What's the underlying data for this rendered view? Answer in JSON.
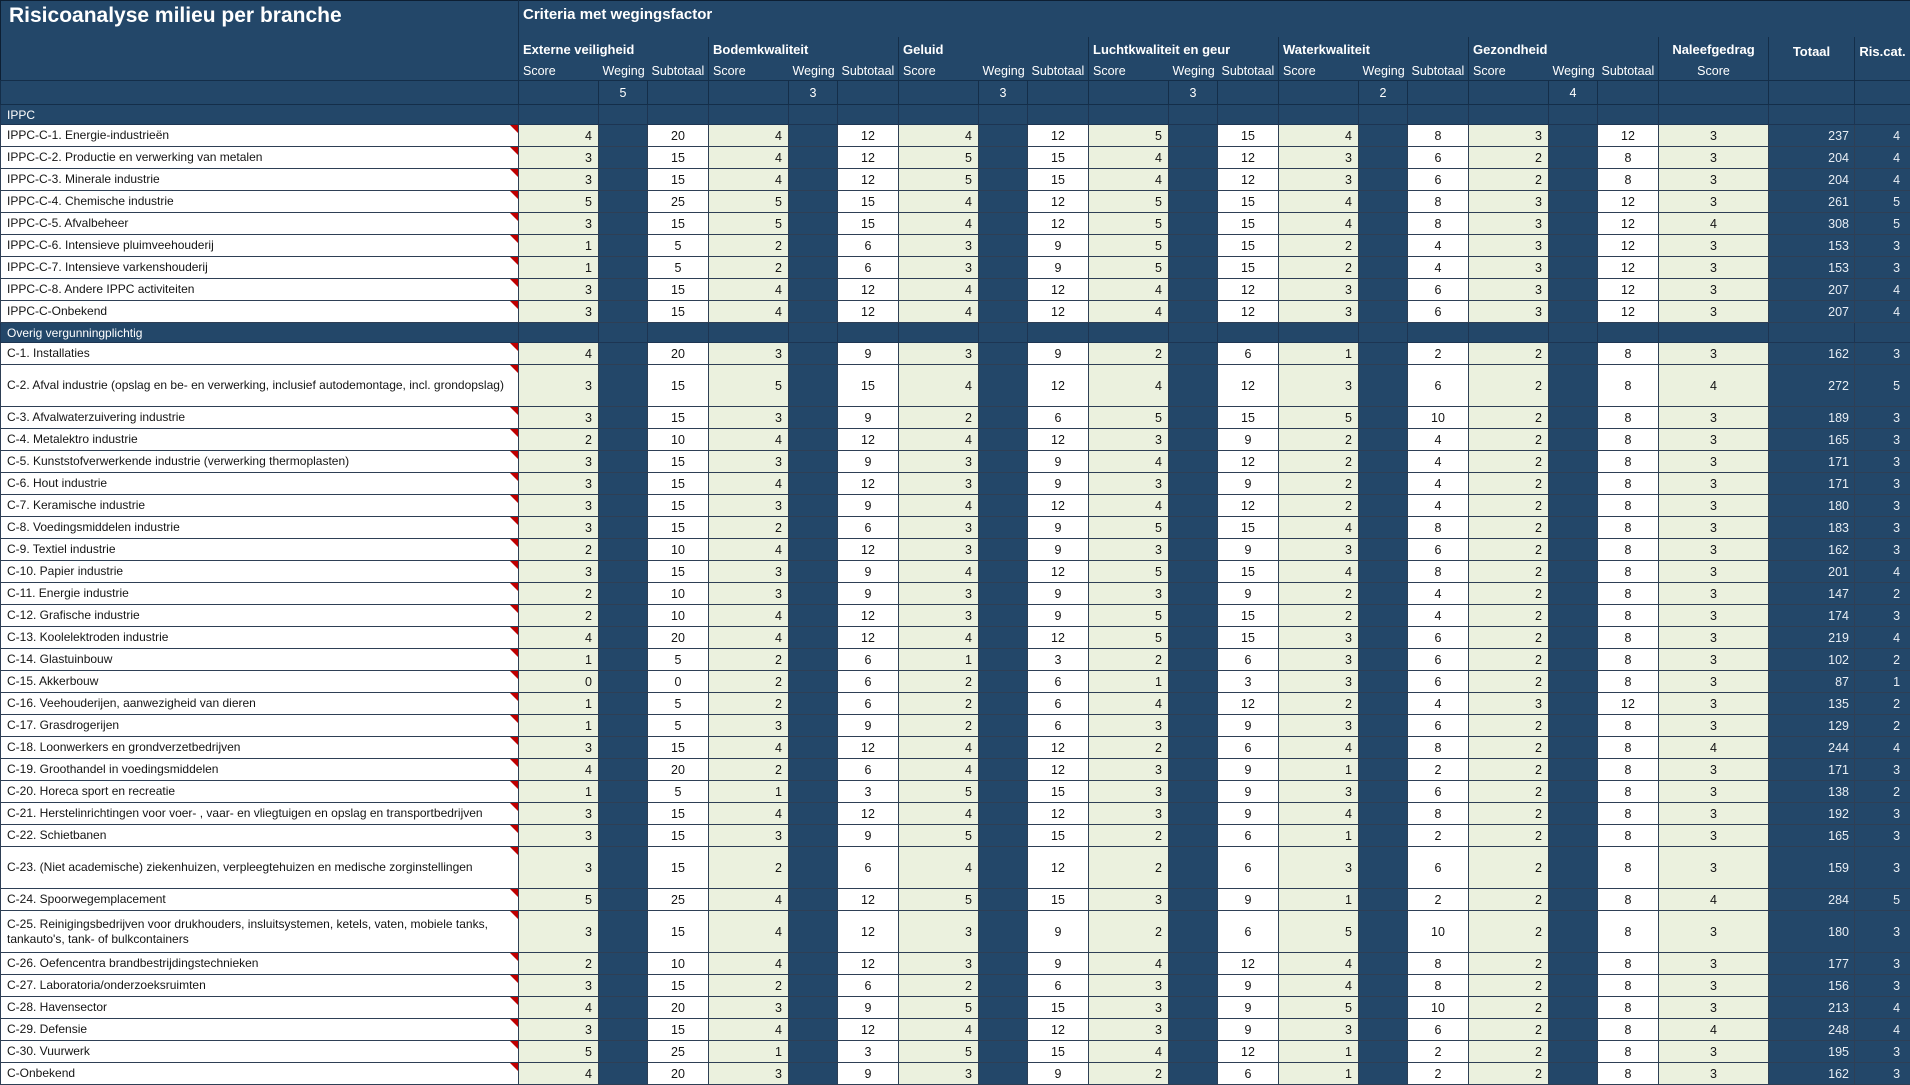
{
  "title": "Risicoanalyse milieu per branche",
  "criteria_header": "Criteria met wegingsfactor",
  "columns": {
    "score": "Score",
    "weging": "Weging",
    "subtotaal": "Subtotaal"
  },
  "criteria": [
    {
      "name": "Externe veiligheid",
      "weight": 5
    },
    {
      "name": "Bodemkwaliteit",
      "weight": 3
    },
    {
      "name": "Geluid",
      "weight": 3
    },
    {
      "name": "Luchtkwaliteit en geur",
      "weight": 3
    },
    {
      "name": "Waterkwaliteit",
      "weight": 2
    },
    {
      "name": "Gezondheid",
      "weight": 4
    }
  ],
  "extra_columns": {
    "naleefgedrag": "Naleefgedrag",
    "naleef_sub": "Score",
    "totaal": "Totaal",
    "riscat": "Ris.cat."
  },
  "colors": {
    "navy": "#234769",
    "cell_green": "#EBF1DE",
    "cell_white": "#FFFFFF",
    "comment_red": "#C00000"
  },
  "sections": [
    {
      "label": "IPPC",
      "rows": [
        {
          "name": "IPPC-C-1. Energie-industrieën",
          "values": [
            4,
            20,
            4,
            12,
            4,
            12,
            5,
            15,
            4,
            8,
            3,
            12
          ],
          "naleef": 3,
          "totaal": 237,
          "riscat": 4
        },
        {
          "name": "IPPC-C-2. Productie en verwerking van metalen",
          "values": [
            3,
            15,
            4,
            12,
            5,
            15,
            4,
            12,
            3,
            6,
            2,
            8
          ],
          "naleef": 3,
          "totaal": 204,
          "riscat": 4
        },
        {
          "name": "IPPC-C-3. Minerale industrie",
          "values": [
            3,
            15,
            4,
            12,
            5,
            15,
            4,
            12,
            3,
            6,
            2,
            8
          ],
          "naleef": 3,
          "totaal": 204,
          "riscat": 4
        },
        {
          "name": "IPPC-C-4. Chemische industrie",
          "values": [
            5,
            25,
            5,
            15,
            4,
            12,
            5,
            15,
            4,
            8,
            3,
            12
          ],
          "naleef": 3,
          "totaal": 261,
          "riscat": 5
        },
        {
          "name": "IPPC-C-5. Afvalbeheer",
          "values": [
            3,
            15,
            5,
            15,
            4,
            12,
            5,
            15,
            4,
            8,
            3,
            12
          ],
          "naleef": 4,
          "totaal": 308,
          "riscat": 5
        },
        {
          "name": "IPPC-C-6. Intensieve pluimveehouderij",
          "values": [
            1,
            5,
            2,
            6,
            3,
            9,
            5,
            15,
            2,
            4,
            3,
            12
          ],
          "naleef": 3,
          "totaal": 153,
          "riscat": 3
        },
        {
          "name": "IPPC-C-7. Intensieve varkenshouderij",
          "values": [
            1,
            5,
            2,
            6,
            3,
            9,
            5,
            15,
            2,
            4,
            3,
            12
          ],
          "naleef": 3,
          "totaal": 153,
          "riscat": 3
        },
        {
          "name": "IPPC-C-8. Andere IPPC activiteiten",
          "values": [
            3,
            15,
            4,
            12,
            4,
            12,
            4,
            12,
            3,
            6,
            3,
            12
          ],
          "naleef": 3,
          "totaal": 207,
          "riscat": 4
        },
        {
          "name": "IPPC-C-Onbekend",
          "values": [
            3,
            15,
            4,
            12,
            4,
            12,
            4,
            12,
            3,
            6,
            3,
            12
          ],
          "naleef": 3,
          "totaal": 207,
          "riscat": 4
        }
      ]
    },
    {
      "label": "Overig vergunningplichtig",
      "rows": [
        {
          "name": "C-1. Installaties",
          "values": [
            4,
            20,
            3,
            9,
            3,
            9,
            2,
            6,
            1,
            2,
            2,
            8
          ],
          "naleef": 3,
          "totaal": 162,
          "riscat": 3
        },
        {
          "name": "C-2. Afval industrie (opslag en be- en verwerking, inclusief autodemontage, incl. grondopslag)",
          "values": [
            3,
            15,
            5,
            15,
            4,
            12,
            4,
            12,
            3,
            6,
            2,
            8
          ],
          "naleef": 4,
          "totaal": 272,
          "riscat": 5,
          "tall": true
        },
        {
          "name": "C-3. Afvalwaterzuivering industrie",
          "values": [
            3,
            15,
            3,
            9,
            2,
            6,
            5,
            15,
            5,
            10,
            2,
            8
          ],
          "naleef": 3,
          "totaal": 189,
          "riscat": 3
        },
        {
          "name": "C-4. Metalektro industrie",
          "values": [
            2,
            10,
            4,
            12,
            4,
            12,
            3,
            9,
            2,
            4,
            2,
            8
          ],
          "naleef": 3,
          "totaal": 165,
          "riscat": 3
        },
        {
          "name": "C-5. Kunststofverwerkende industrie (verwerking thermoplasten)",
          "values": [
            3,
            15,
            3,
            9,
            3,
            9,
            4,
            12,
            2,
            4,
            2,
            8
          ],
          "naleef": 3,
          "totaal": 171,
          "riscat": 3
        },
        {
          "name": "C-6. Hout industrie",
          "values": [
            3,
            15,
            4,
            12,
            3,
            9,
            3,
            9,
            2,
            4,
            2,
            8
          ],
          "naleef": 3,
          "totaal": 171,
          "riscat": 3
        },
        {
          "name": "C-7. Keramische industrie",
          "values": [
            3,
            15,
            3,
            9,
            4,
            12,
            4,
            12,
            2,
            4,
            2,
            8
          ],
          "naleef": 3,
          "totaal": 180,
          "riscat": 3
        },
        {
          "name": "C-8. Voedingsmiddelen industrie",
          "values": [
            3,
            15,
            2,
            6,
            3,
            9,
            5,
            15,
            4,
            8,
            2,
            8
          ],
          "naleef": 3,
          "totaal": 183,
          "riscat": 3
        },
        {
          "name": "C-9. Textiel industrie",
          "values": [
            2,
            10,
            4,
            12,
            3,
            9,
            3,
            9,
            3,
            6,
            2,
            8
          ],
          "naleef": 3,
          "totaal": 162,
          "riscat": 3
        },
        {
          "name": "C-10. Papier industrie",
          "values": [
            3,
            15,
            3,
            9,
            4,
            12,
            5,
            15,
            4,
            8,
            2,
            8
          ],
          "naleef": 3,
          "totaal": 201,
          "riscat": 4
        },
        {
          "name": "C-11. Energie industrie",
          "values": [
            2,
            10,
            3,
            9,
            3,
            9,
            3,
            9,
            2,
            4,
            2,
            8
          ],
          "naleef": 3,
          "totaal": 147,
          "riscat": 2
        },
        {
          "name": "C-12. Grafische industrie",
          "values": [
            2,
            10,
            4,
            12,
            3,
            9,
            5,
            15,
            2,
            4,
            2,
            8
          ],
          "naleef": 3,
          "totaal": 174,
          "riscat": 3
        },
        {
          "name": "C-13. Koolelektroden industrie",
          "values": [
            4,
            20,
            4,
            12,
            4,
            12,
            5,
            15,
            3,
            6,
            2,
            8
          ],
          "naleef": 3,
          "totaal": 219,
          "riscat": 4
        },
        {
          "name": "C-14. Glastuinbouw",
          "values": [
            1,
            5,
            2,
            6,
            1,
            3,
            2,
            6,
            3,
            6,
            2,
            8
          ],
          "naleef": 3,
          "totaal": 102,
          "riscat": 2
        },
        {
          "name": "C-15. Akkerbouw",
          "values": [
            0,
            0,
            2,
            6,
            2,
            6,
            1,
            3,
            3,
            6,
            2,
            8
          ],
          "naleef": 3,
          "totaal": 87,
          "riscat": 1
        },
        {
          "name": "C-16. Veehouderijen, aanwezigheid van dieren",
          "values": [
            1,
            5,
            2,
            6,
            2,
            6,
            4,
            12,
            2,
            4,
            3,
            12
          ],
          "naleef": 3,
          "totaal": 135,
          "riscat": 2
        },
        {
          "name": "C-17. Grasdrogerijen",
          "values": [
            1,
            5,
            3,
            9,
            2,
            6,
            3,
            9,
            3,
            6,
            2,
            8
          ],
          "naleef": 3,
          "totaal": 129,
          "riscat": 2
        },
        {
          "name": "C-18. Loonwerkers en grondverzetbedrijven",
          "values": [
            3,
            15,
            4,
            12,
            4,
            12,
            2,
            6,
            4,
            8,
            2,
            8
          ],
          "naleef": 4,
          "totaal": 244,
          "riscat": 4
        },
        {
          "name": "C-19. Groothandel in voedingsmiddelen",
          "values": [
            4,
            20,
            2,
            6,
            4,
            12,
            3,
            9,
            1,
            2,
            2,
            8
          ],
          "naleef": 3,
          "totaal": 171,
          "riscat": 3
        },
        {
          "name": "C-20. Horeca sport en recreatie",
          "values": [
            1,
            5,
            1,
            3,
            5,
            15,
            3,
            9,
            3,
            6,
            2,
            8
          ],
          "naleef": 3,
          "totaal": 138,
          "riscat": 2
        },
        {
          "name": "C-21. Herstelinrichtingen voor voer- , vaar- en vliegtuigen en opslag en transportbedrijven",
          "values": [
            3,
            15,
            4,
            12,
            4,
            12,
            3,
            9,
            4,
            8,
            2,
            8
          ],
          "naleef": 3,
          "totaal": 192,
          "riscat": 3
        },
        {
          "name": "C-22. Schietbanen",
          "values": [
            3,
            15,
            3,
            9,
            5,
            15,
            2,
            6,
            1,
            2,
            2,
            8
          ],
          "naleef": 3,
          "totaal": 165,
          "riscat": 3
        },
        {
          "name": "C-23. (Niet academische) ziekenhuizen, verpleegtehuizen en medische zorginstellingen",
          "values": [
            3,
            15,
            2,
            6,
            4,
            12,
            2,
            6,
            3,
            6,
            2,
            8
          ],
          "naleef": 3,
          "totaal": 159,
          "riscat": 3,
          "tall": true
        },
        {
          "name": "C-24. Spoorwegemplacement",
          "values": [
            5,
            25,
            4,
            12,
            5,
            15,
            3,
            9,
            1,
            2,
            2,
            8
          ],
          "naleef": 4,
          "totaal": 284,
          "riscat": 5
        },
        {
          "name": "C-25. Reinigingsbedrijven voor drukhouders, insluitsystemen, ketels, vaten, mobiele tanks, tankauto's, tank- of bulkcontainers",
          "values": [
            3,
            15,
            4,
            12,
            3,
            9,
            2,
            6,
            5,
            10,
            2,
            8
          ],
          "naleef": 3,
          "totaal": 180,
          "riscat": 3,
          "tall": true
        },
        {
          "name": "C-26. Oefencentra brandbestrijdingstechnieken",
          "values": [
            2,
            10,
            4,
            12,
            3,
            9,
            4,
            12,
            4,
            8,
            2,
            8
          ],
          "naleef": 3,
          "totaal": 177,
          "riscat": 3
        },
        {
          "name": "C-27. Laboratoria/onderzoeksruimten",
          "values": [
            3,
            15,
            2,
            6,
            2,
            6,
            3,
            9,
            4,
            8,
            2,
            8
          ],
          "naleef": 3,
          "totaal": 156,
          "riscat": 3
        },
        {
          "name": "C-28. Havensector",
          "values": [
            4,
            20,
            3,
            9,
            5,
            15,
            3,
            9,
            5,
            10,
            2,
            8
          ],
          "naleef": 3,
          "totaal": 213,
          "riscat": 4
        },
        {
          "name": "C-29. Defensie",
          "values": [
            3,
            15,
            4,
            12,
            4,
            12,
            3,
            9,
            3,
            6,
            2,
            8
          ],
          "naleef": 4,
          "totaal": 248,
          "riscat": 4
        },
        {
          "name": "C-30. Vuurwerk",
          "values": [
            5,
            25,
            1,
            3,
            5,
            15,
            4,
            12,
            1,
            2,
            2,
            8
          ],
          "naleef": 3,
          "totaal": 195,
          "riscat": 3
        },
        {
          "name": "C-Onbekend",
          "values": [
            4,
            20,
            3,
            9,
            3,
            9,
            2,
            6,
            1,
            2,
            2,
            8
          ],
          "naleef": 3,
          "totaal": 162,
          "riscat": 3
        }
      ]
    }
  ]
}
